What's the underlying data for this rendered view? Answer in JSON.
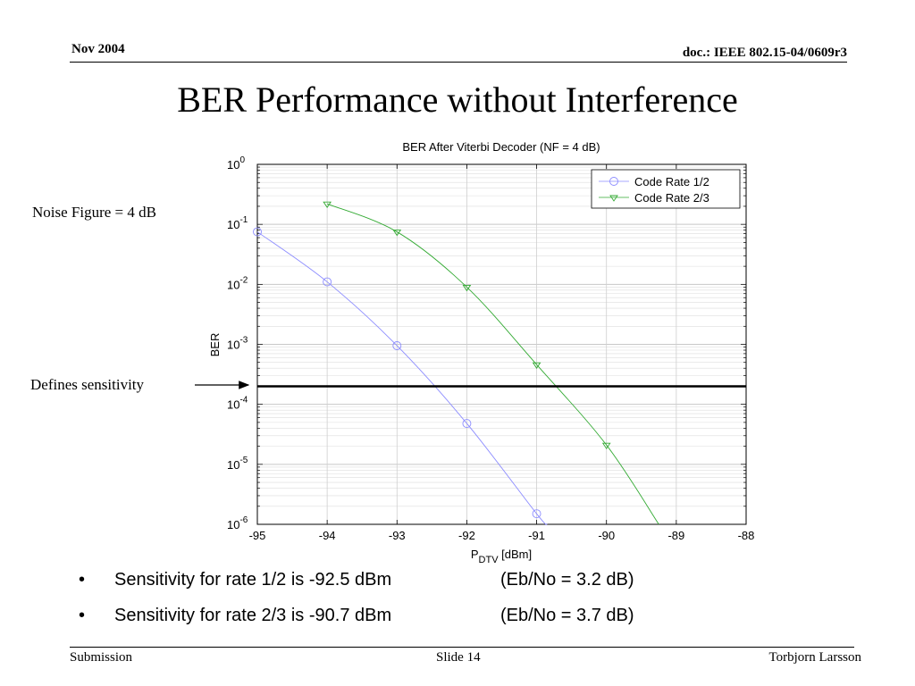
{
  "header": {
    "date": "Nov 2004",
    "doc": "doc.: IEEE 802.15-04/0609r3"
  },
  "slide_title": "BER Performance without Interference",
  "labels": {
    "noise_figure": "Noise Figure = 4 dB",
    "sensitivity": "Defines sensitivity"
  },
  "bullets": [
    {
      "marker": "•",
      "text": "Sensitivity for rate 1/2 is -92.5 dBm",
      "ebno": "(Eb/No = 3.2 dB)"
    },
    {
      "marker": "•",
      "text": "Sensitivity for rate 2/3 is -90.7 dBm",
      "ebno": "(Eb/No = 3.7 dB)"
    }
  ],
  "footer": {
    "left": "Submission",
    "center": "Slide 14",
    "right": "Torbjorn Larsson"
  },
  "chart_data": {
    "type": "line",
    "title": "BER After Viterbi Decoder (NF = 4 dB)",
    "xlabel_main": "P",
    "xlabel_sub": "DTV",
    "xlabel_unit": " [dBm]",
    "ylabel": "BER",
    "xlim": [
      -95,
      -88
    ],
    "ylim_log10": [
      -6,
      0
    ],
    "y_scale": "log",
    "grid": true,
    "legend_position": "top-right",
    "x_ticks": [
      "-95",
      "-94",
      "-93",
      "-92",
      "-91",
      "-90",
      "-89",
      "-88"
    ],
    "y_ticks": [
      {
        "base": "10",
        "exp": "0"
      },
      {
        "base": "10",
        "exp": "-1"
      },
      {
        "base": "10",
        "exp": "-2"
      },
      {
        "base": "10",
        "exp": "-3"
      },
      {
        "base": "10",
        "exp": "-4"
      },
      {
        "base": "10",
        "exp": "-5"
      },
      {
        "base": "10",
        "exp": "-6"
      }
    ],
    "series": [
      {
        "name": "Code Rate 1/2",
        "color": "#8c8cff",
        "marker": "circle",
        "x": [
          -95,
          -94,
          -93,
          -92,
          -91,
          -90.85
        ],
        "y": [
          0.075,
          0.011,
          0.00095,
          4.8e-05,
          1.5e-06,
          1e-06
        ]
      },
      {
        "name": "Code Rate 2/3",
        "color": "#33aa33",
        "marker": "triangle-down",
        "x": [
          -94,
          -93,
          -92,
          -91,
          -90,
          -89.25
        ],
        "y": [
          0.22,
          0.075,
          0.009,
          0.00046,
          2.1e-05,
          1e-06
        ]
      }
    ],
    "reference_line": {
      "y": 0.0002,
      "color": "#000000"
    }
  }
}
